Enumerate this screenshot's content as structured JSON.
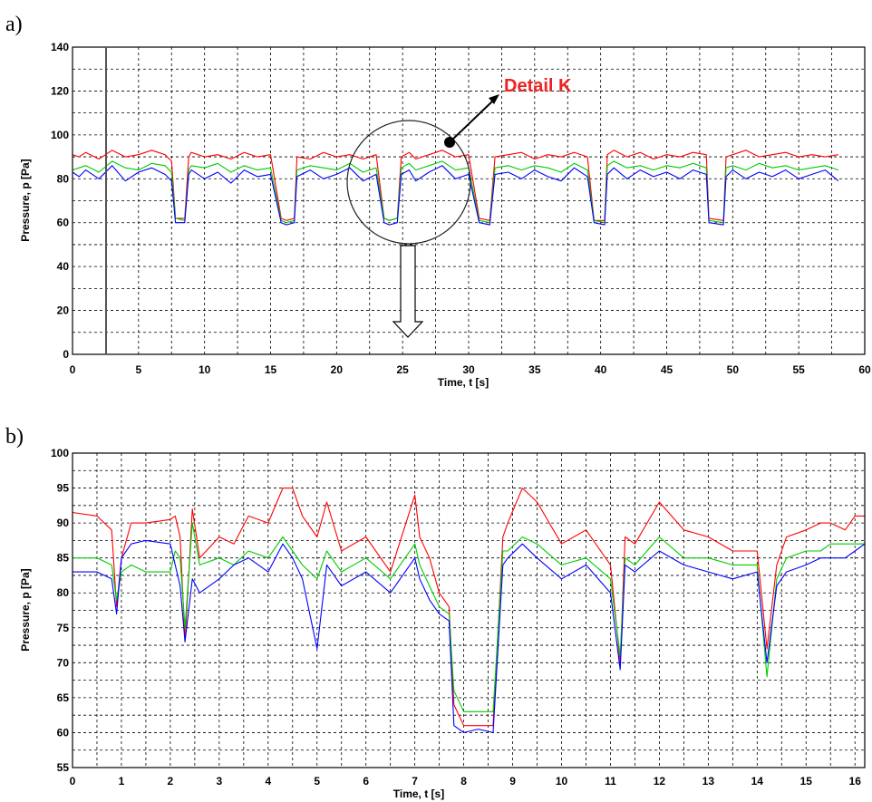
{
  "chart_data": [
    {
      "panel": "a)",
      "type": "line",
      "xlabel": "Time, t [s]",
      "ylabel": "Pressure, p [Pa]",
      "xlim": [
        0,
        60
      ],
      "ylim": [
        0,
        140
      ],
      "xticks": [
        0,
        5,
        10,
        15,
        20,
        25,
        30,
        35,
        40,
        45,
        50,
        55,
        60
      ],
      "yticks": [
        0,
        20,
        40,
        60,
        80,
        100,
        120,
        140
      ],
      "grid": true,
      "series": [
        {
          "color": "#ff0000",
          "x": [
            0,
            0.5,
            1,
            2,
            3,
            4,
            5,
            6,
            7,
            7.5,
            7.8,
            8.5,
            8.8,
            9,
            10,
            11,
            12,
            13,
            14,
            15,
            15.8,
            16.2,
            16.8,
            17,
            18,
            19,
            20,
            21,
            22,
            23,
            23.6,
            24,
            24.6,
            24.9,
            25.5,
            26,
            27,
            28,
            29,
            30,
            30.8,
            31.6,
            32,
            33,
            34,
            35,
            36,
            37,
            38,
            39,
            39.5,
            40.3,
            40.5,
            41,
            42,
            43,
            44,
            45,
            46,
            47,
            48,
            48.2,
            49.3,
            49.5,
            50,
            51,
            52,
            53,
            54,
            55,
            56,
            57,
            58
          ],
          "y": [
            91,
            90,
            92,
            89,
            93,
            90,
            91,
            93,
            91,
            88,
            62,
            62,
            90,
            92,
            90,
            91,
            89,
            92,
            90,
            91,
            62,
            61,
            62,
            90,
            89,
            92,
            90,
            91,
            89,
            91,
            62,
            61,
            62,
            90,
            92,
            89,
            91,
            93,
            90,
            91,
            62,
            61,
            90,
            91,
            92,
            89,
            91,
            90,
            92,
            90,
            61,
            61,
            91,
            93,
            90,
            92,
            89,
            91,
            90,
            92,
            91,
            62,
            61,
            90,
            91,
            93,
            90,
            91,
            92,
            90,
            91,
            90,
            91
          ]
        },
        {
          "color": "#00cc00",
          "x": [
            0,
            0.5,
            1,
            2,
            3,
            4,
            5,
            6,
            7,
            7.5,
            7.8,
            8.5,
            8.8,
            9,
            10,
            11,
            12,
            13,
            14,
            15,
            15.8,
            16.2,
            16.8,
            17,
            18,
            19,
            20,
            21,
            22,
            23,
            23.6,
            24,
            24.6,
            24.9,
            25.5,
            26,
            27,
            28,
            29,
            30,
            30.8,
            31.6,
            32,
            33,
            34,
            35,
            36,
            37,
            38,
            39,
            39.5,
            40.3,
            40.5,
            41,
            42,
            43,
            44,
            45,
            46,
            47,
            48,
            48.2,
            49.3,
            49.5,
            50,
            51,
            52,
            53,
            54,
            55,
            56,
            57,
            58
          ],
          "y": [
            84,
            85,
            86,
            83,
            88,
            85,
            84,
            87,
            86,
            83,
            62,
            61,
            84,
            86,
            85,
            87,
            83,
            86,
            84,
            85,
            61,
            60,
            61,
            84,
            86,
            85,
            84,
            87,
            83,
            85,
            62,
            61,
            62,
            85,
            87,
            84,
            86,
            88,
            84,
            85,
            61,
            60,
            85,
            86,
            84,
            86,
            85,
            83,
            87,
            84,
            61,
            60,
            86,
            88,
            85,
            86,
            84,
            86,
            85,
            87,
            85,
            61,
            60,
            85,
            86,
            84,
            87,
            85,
            86,
            84,
            85,
            86,
            84
          ]
        },
        {
          "color": "#0000ff",
          "x": [
            0,
            0.5,
            1,
            2,
            3,
            4,
            5,
            6,
            7,
            7.5,
            7.8,
            8.5,
            8.8,
            9,
            10,
            11,
            12,
            13,
            14,
            15,
            15.8,
            16.2,
            16.8,
            17,
            18,
            19,
            20,
            21,
            22,
            23,
            23.6,
            24,
            24.6,
            24.9,
            25.5,
            26,
            27,
            28,
            29,
            30,
            30.8,
            31.6,
            32,
            33,
            34,
            35,
            36,
            37,
            38,
            39,
            39.5,
            40.3,
            40.5,
            41,
            42,
            43,
            44,
            45,
            46,
            47,
            48,
            48.2,
            49.3,
            49.5,
            50,
            51,
            52,
            53,
            54,
            55,
            56,
            57,
            58
          ],
          "y": [
            83,
            81,
            84,
            80,
            86,
            79,
            83,
            85,
            82,
            79,
            60,
            60,
            82,
            84,
            80,
            83,
            78,
            84,
            81,
            82,
            60,
            59,
            60,
            81,
            84,
            80,
            82,
            85,
            79,
            82,
            60,
            59,
            60,
            82,
            84,
            79,
            83,
            86,
            80,
            82,
            60,
            59,
            82,
            83,
            80,
            84,
            81,
            79,
            85,
            81,
            60,
            59,
            82,
            85,
            80,
            84,
            81,
            83,
            80,
            84,
            82,
            60,
            59,
            81,
            84,
            80,
            83,
            81,
            84,
            80,
            82,
            84,
            79
          ]
        }
      ]
    },
    {
      "panel": "b)",
      "type": "line",
      "xlabel": "Time, t [s]",
      "ylabel": "Pressure, p [Pa]",
      "xlim": [
        0,
        16.2
      ],
      "ylim": [
        55,
        100
      ],
      "xticks": [
        0,
        1,
        2,
        3,
        4,
        5,
        6,
        7,
        8,
        9,
        10,
        11,
        12,
        13,
        14,
        15,
        16
      ],
      "yticks": [
        55,
        60,
        65,
        70,
        75,
        80,
        85,
        90,
        95,
        100
      ],
      "grid": true,
      "series": [
        {
          "color": "#ff0000",
          "x": [
            0,
            0.5,
            0.8,
            0.9,
            1.0,
            1.2,
            1.5,
            2.0,
            2.1,
            2.2,
            2.3,
            2.45,
            2.6,
            3.0,
            3.3,
            3.6,
            4.0,
            4.3,
            4.5,
            4.7,
            5.0,
            5.2,
            5.5,
            6.0,
            6.5,
            7.0,
            7.1,
            7.3,
            7.5,
            7.7,
            7.8,
            8.0,
            8.3,
            8.6,
            8.8,
            8.9,
            9.2,
            9.5,
            10.0,
            10.5,
            11.0,
            11.2,
            11.3,
            11.5,
            12.0,
            12.5,
            13.0,
            13.5,
            14.0,
            14.2,
            14.4,
            14.6,
            15.0,
            15.3,
            15.5,
            15.8,
            16.0,
            16.2
          ],
          "y": [
            91.5,
            91,
            89,
            78,
            85,
            90,
            90,
            90.5,
            91,
            88,
            73,
            92,
            85,
            88,
            87,
            91,
            90,
            95,
            95,
            91,
            88,
            93,
            86,
            88,
            83,
            94,
            88,
            85,
            80,
            78,
            64,
            61,
            61,
            61,
            88,
            90,
            95,
            93,
            87,
            89,
            84,
            70,
            88,
            87,
            93,
            89,
            88,
            86,
            86,
            72,
            84,
            88,
            89,
            90,
            90,
            89,
            91,
            91
          ]
        },
        {
          "color": "#00cc00",
          "x": [
            0,
            0.5,
            0.8,
            0.9,
            1.0,
            1.2,
            1.5,
            2.0,
            2.1,
            2.2,
            2.3,
            2.45,
            2.6,
            3.0,
            3.3,
            3.6,
            4.0,
            4.3,
            4.5,
            4.7,
            5.0,
            5.2,
            5.5,
            6.0,
            6.5,
            7.0,
            7.1,
            7.3,
            7.5,
            7.7,
            7.8,
            8.0,
            8.3,
            8.6,
            8.8,
            8.9,
            9.2,
            9.5,
            10.0,
            10.5,
            11.0,
            11.2,
            11.3,
            11.5,
            12.0,
            12.5,
            13.0,
            13.5,
            14.0,
            14.2,
            14.4,
            14.6,
            15.0,
            15.3,
            15.5,
            15.8,
            16.0,
            16.2
          ],
          "y": [
            85,
            85,
            84,
            79,
            83,
            84,
            83,
            83,
            86,
            85,
            75,
            90,
            84,
            85,
            84,
            86,
            85,
            88,
            86,
            84,
            82,
            86,
            83,
            85,
            82,
            87,
            84,
            81,
            78,
            77,
            66,
            63,
            63,
            63,
            86,
            86,
            88,
            87,
            84,
            85,
            82,
            71,
            85,
            84,
            88,
            85,
            85,
            84,
            84,
            68,
            82,
            85,
            86,
            86,
            87,
            87,
            87,
            87
          ]
        },
        {
          "color": "#0000ff",
          "x": [
            0,
            0.5,
            0.8,
            0.9,
            1.0,
            1.2,
            1.5,
            2.0,
            2.1,
            2.2,
            2.3,
            2.45,
            2.6,
            3.0,
            3.3,
            3.6,
            4.0,
            4.3,
            4.5,
            4.7,
            5.0,
            5.2,
            5.5,
            6.0,
            6.5,
            7.0,
            7.1,
            7.3,
            7.5,
            7.7,
            7.8,
            8.0,
            8.3,
            8.6,
            8.8,
            8.9,
            9.2,
            9.5,
            10.0,
            10.5,
            11.0,
            11.2,
            11.3,
            11.5,
            12.0,
            12.5,
            13.0,
            13.5,
            14.0,
            14.2,
            14.4,
            14.6,
            15.0,
            15.3,
            15.5,
            15.8,
            16.0,
            16.2
          ],
          "y": [
            83,
            83,
            82,
            77,
            85,
            87,
            87.5,
            87,
            84,
            81,
            73,
            82,
            80,
            82,
            84,
            85,
            83,
            87,
            85,
            82,
            72,
            84,
            81,
            83,
            80,
            85,
            82,
            79,
            77,
            76,
            61,
            60,
            60.5,
            60,
            84,
            85,
            87,
            85,
            82,
            84,
            80,
            69,
            84,
            83,
            86,
            84,
            83,
            82,
            83,
            70,
            81,
            83,
            84,
            85,
            85,
            85,
            86,
            87
          ]
        }
      ]
    }
  ],
  "annotation": {
    "label": "Detail K",
    "color": "#ee2222"
  }
}
